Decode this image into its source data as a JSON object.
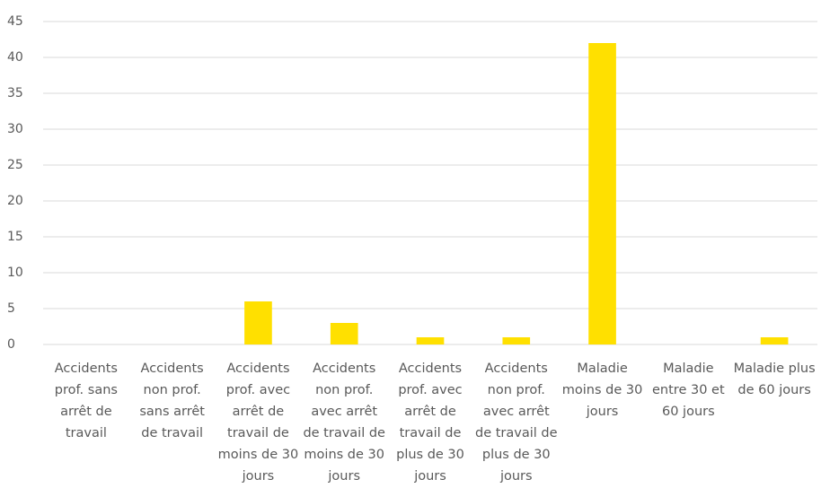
{
  "chart_data": {
    "type": "bar",
    "categories": [
      "Accidents prof. sans arrêt de travail",
      "Accidents non prof. sans arrêt de travail",
      "Accidents prof. avec arrêt de travail de moins de 30 jours",
      "Accidents non prof. avec arrêt de travail de moins de 30 jours",
      "Accidents prof. avec arrêt de travail de plus de 30 jours",
      "Accidents non prof. avec arrêt de travail de plus de 30 jours",
      "Maladie moins de 30 jours",
      "Maladie entre 30 et 60 jours",
      "Maladie plus de 60 jours"
    ],
    "values": [
      0,
      0,
      6,
      3,
      1,
      1,
      42,
      0,
      1
    ],
    "color": "#ffe000",
    "ylim": [
      0,
      45
    ],
    "yticks": [
      0,
      5,
      10,
      15,
      20,
      25,
      30,
      35,
      40,
      45
    ],
    "grid": true
  }
}
